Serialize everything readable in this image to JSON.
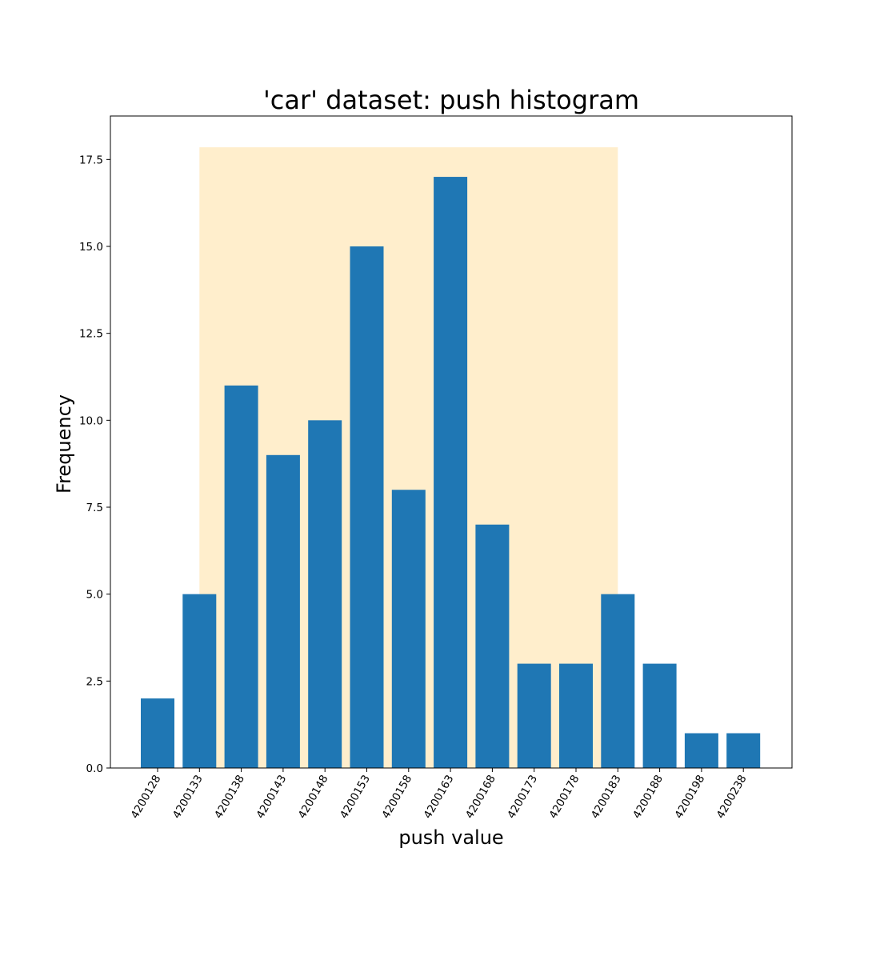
{
  "chart_data": {
    "type": "bar",
    "title": "'car' dataset: push histogram",
    "xlabel": "push value",
    "ylabel": "Frequency",
    "categories": [
      "4200128",
      "4200133",
      "4200138",
      "4200143",
      "4200148",
      "4200153",
      "4200158",
      "4200163",
      "4200168",
      "4200173",
      "4200178",
      "4200183",
      "4200188",
      "4200198",
      "4200238"
    ],
    "values": [
      2,
      5,
      11,
      9,
      10,
      15,
      8,
      17,
      7,
      3,
      3,
      5,
      3,
      1,
      1
    ],
    "ylim": [
      0,
      18.75
    ],
    "yticks": [
      0.0,
      2.5,
      5.0,
      7.5,
      10.0,
      12.5,
      15.0,
      17.5
    ],
    "ytick_labels": [
      "0.0",
      "2.5",
      "5.0",
      "7.5",
      "10.0",
      "12.5",
      "15.0",
      "17.5"
    ],
    "highlight_region": {
      "from_category": "4200133",
      "to_category": "4200183",
      "top": 17.85
    },
    "grid": false,
    "colors": {
      "bar": "#1f77b4",
      "highlight": "#ffeecc",
      "axes": "#000000"
    }
  }
}
